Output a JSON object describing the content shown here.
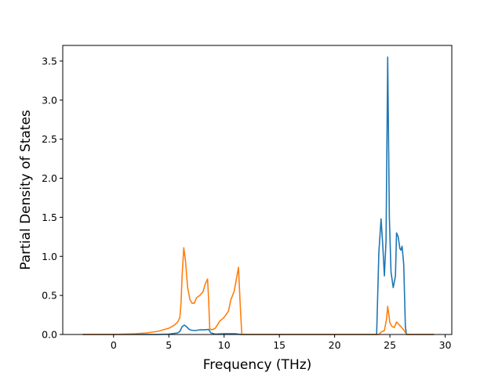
{
  "chart_data": {
    "type": "line",
    "title": "",
    "xlabel": "Frequency (THz)",
    "ylabel": "Partial Density of States",
    "xlim": [
      -4.6,
      30.6
    ],
    "ylim": [
      0,
      3.7
    ],
    "xticks": [
      0,
      5,
      10,
      15,
      20,
      25,
      30
    ],
    "yticks": [
      0.0,
      0.5,
      1.0,
      1.5,
      2.0,
      2.5,
      3.0,
      3.5
    ],
    "xtick_labels": [
      "0",
      "5",
      "10",
      "15",
      "20",
      "25",
      "30"
    ],
    "ytick_labels": [
      "0.0",
      "0.5",
      "1.0",
      "1.5",
      "2.0",
      "2.5",
      "3.0",
      "3.5"
    ],
    "grid": false,
    "legend": "none",
    "series": [
      {
        "color": "#1f77b4",
        "points": [
          [
            -2.8,
            0
          ],
          [
            4.0,
            0.0
          ],
          [
            5.0,
            0.005
          ],
          [
            5.8,
            0.02
          ],
          [
            6.0,
            0.04
          ],
          [
            6.2,
            0.1
          ],
          [
            6.4,
            0.12
          ],
          [
            6.6,
            0.1
          ],
          [
            6.8,
            0.07
          ],
          [
            7.0,
            0.055
          ],
          [
            7.4,
            0.05
          ],
          [
            7.8,
            0.06
          ],
          [
            8.2,
            0.06
          ],
          [
            8.6,
            0.065
          ],
          [
            8.8,
            0.02
          ],
          [
            9.2,
            0.005
          ],
          [
            10.0,
            0.01
          ],
          [
            11.0,
            0.01
          ],
          [
            11.5,
            0.0
          ],
          [
            23.8,
            0.0
          ],
          [
            24.0,
            1.05
          ],
          [
            24.2,
            1.48
          ],
          [
            24.35,
            1.15
          ],
          [
            24.5,
            0.75
          ],
          [
            24.65,
            1.2
          ],
          [
            24.8,
            3.55
          ],
          [
            24.95,
            1.5
          ],
          [
            25.1,
            0.8
          ],
          [
            25.3,
            0.6
          ],
          [
            25.5,
            0.75
          ],
          [
            25.6,
            1.3
          ],
          [
            25.75,
            1.25
          ],
          [
            25.9,
            1.1
          ],
          [
            26.0,
            1.08
          ],
          [
            26.1,
            1.13
          ],
          [
            26.25,
            0.9
          ],
          [
            26.4,
            0.1
          ],
          [
            26.5,
            0.0
          ],
          [
            29.0,
            0.0
          ]
        ]
      },
      {
        "color": "#ff7f0e",
        "points": [
          [
            -2.8,
            0
          ],
          [
            0.0,
            0.0
          ],
          [
            1.0,
            0.005
          ],
          [
            2.0,
            0.01
          ],
          [
            3.0,
            0.02
          ],
          [
            4.0,
            0.04
          ],
          [
            4.5,
            0.06
          ],
          [
            5.0,
            0.08
          ],
          [
            5.5,
            0.12
          ],
          [
            5.8,
            0.16
          ],
          [
            6.0,
            0.22
          ],
          [
            6.1,
            0.4
          ],
          [
            6.2,
            0.75
          ],
          [
            6.35,
            1.11
          ],
          [
            6.5,
            0.95
          ],
          [
            6.7,
            0.6
          ],
          [
            6.9,
            0.45
          ],
          [
            7.1,
            0.4
          ],
          [
            7.3,
            0.4
          ],
          [
            7.5,
            0.47
          ],
          [
            7.8,
            0.5
          ],
          [
            8.1,
            0.55
          ],
          [
            8.3,
            0.65
          ],
          [
            8.5,
            0.71
          ],
          [
            8.6,
            0.45
          ],
          [
            8.7,
            0.07
          ],
          [
            8.9,
            0.06
          ],
          [
            9.2,
            0.08
          ],
          [
            9.6,
            0.17
          ],
          [
            10.0,
            0.22
          ],
          [
            10.4,
            0.3
          ],
          [
            10.6,
            0.44
          ],
          [
            10.9,
            0.55
          ],
          [
            11.1,
            0.7
          ],
          [
            11.3,
            0.86
          ],
          [
            11.45,
            0.4
          ],
          [
            11.6,
            0.0
          ],
          [
            24.0,
            0.0
          ],
          [
            24.2,
            0.03
          ],
          [
            24.5,
            0.05
          ],
          [
            24.7,
            0.2
          ],
          [
            24.8,
            0.36
          ],
          [
            25.0,
            0.15
          ],
          [
            25.2,
            0.1
          ],
          [
            25.4,
            0.09
          ],
          [
            25.6,
            0.16
          ],
          [
            25.8,
            0.13
          ],
          [
            26.0,
            0.1
          ],
          [
            26.3,
            0.05
          ],
          [
            26.5,
            0.0
          ],
          [
            29.0,
            0.0
          ]
        ]
      }
    ]
  }
}
